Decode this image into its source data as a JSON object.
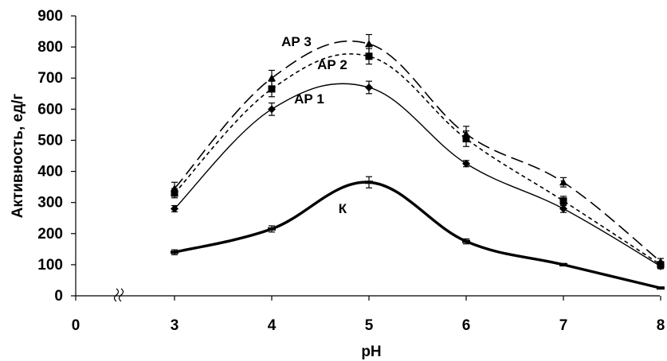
{
  "chart_data": {
    "type": "line",
    "xlabel": "pH",
    "ylabel": "Активность, ед/г",
    "ylim": [
      0,
      900
    ],
    "y_ticks": [
      0,
      100,
      200,
      300,
      400,
      500,
      600,
      700,
      800,
      900
    ],
    "x_ticks": [
      0,
      3,
      4,
      5,
      6,
      7,
      8
    ],
    "axis_break": "between 0 and 3",
    "grid": false,
    "legend": "none (series labeled inline)",
    "x": [
      3,
      4,
      5,
      6,
      7,
      8
    ],
    "series": [
      {
        "name": "АР 3",
        "line_style": "long-dash",
        "marker": "triangle",
        "values": [
          345,
          700,
          810,
          520,
          365,
          110
        ],
        "errors": [
          20,
          25,
          30,
          25,
          15,
          10
        ]
      },
      {
        "name": "АР 2",
        "line_style": "short-dash",
        "marker": "square",
        "values": [
          330,
          665,
          770,
          505,
          305,
          100
        ],
        "errors": [
          15,
          25,
          25,
          25,
          15,
          10
        ]
      },
      {
        "name": "АР 1",
        "line_style": "solid-thin",
        "marker": "diamond",
        "values": [
          280,
          600,
          670,
          425,
          280,
          95
        ],
        "errors": [
          10,
          20,
          20,
          10,
          12,
          8
        ]
      },
      {
        "name": "К",
        "line_style": "solid-thick",
        "marker": "dash",
        "values": [
          140,
          215,
          365,
          175,
          100,
          25
        ],
        "errors": [
          8,
          10,
          18,
          8,
          4,
          3
        ]
      }
    ]
  }
}
